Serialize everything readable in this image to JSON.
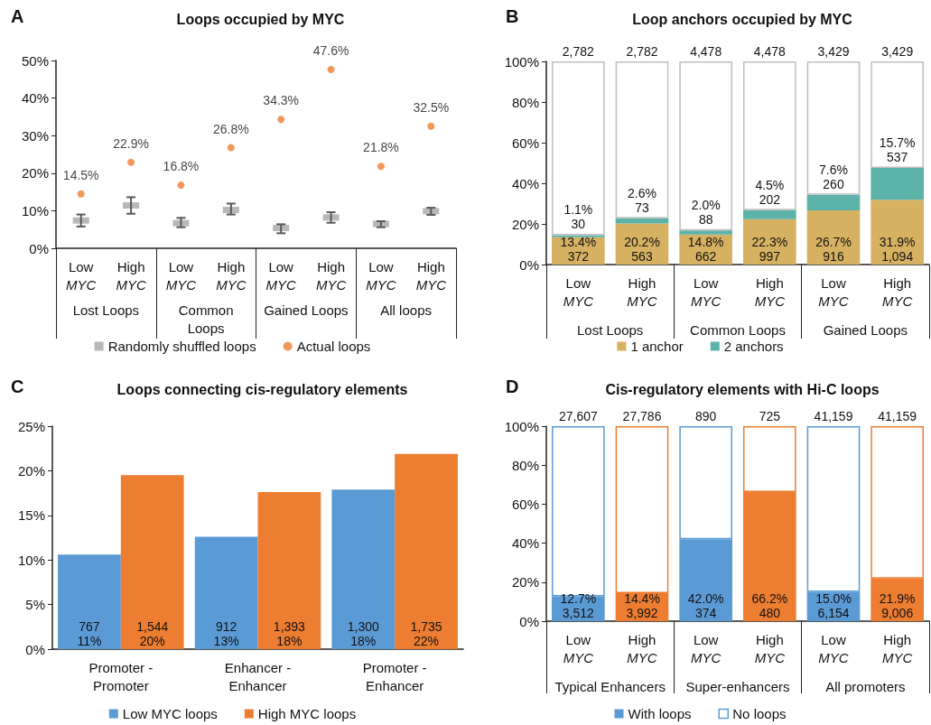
{
  "chart_data": [
    {
      "type": "scatter",
      "title": "Loops occupied by MYC",
      "categories": [
        "Low\nMYC",
        "High\nMYC",
        "Low\nMYC",
        "High\nMYC",
        "Low\nMYC",
        "High\nMYC",
        "Low\nMYC",
        "High\nMYC"
      ],
      "annotations": [
        "A",
        "Lost Loops",
        "Common\nLoops",
        "Gained Loops",
        "All loops"
      ],
      "series": [
        {
          "name": "Randomly shuffled loops",
          "color": "#a6a6a6",
          "marker": "square",
          "values": [
            7.4,
            11.4,
            6.7,
            10.2,
            5.4,
            8.2,
            6.5,
            9.9
          ],
          "errors": [
            [
              5.8,
              9.0
            ],
            [
              9.2,
              13.6
            ],
            [
              5.6,
              8.1
            ],
            [
              9.0,
              11.9
            ],
            [
              4.0,
              6.4
            ],
            [
              6.8,
              9.6
            ],
            [
              5.6,
              7.2
            ],
            [
              8.9,
              10.8
            ]
          ]
        },
        {
          "name": "Actual loops",
          "color": "#ed7d31",
          "marker": "circle",
          "values": [
            14.5,
            22.9,
            16.8,
            26.8,
            34.3,
            47.6,
            21.8,
            32.5
          ],
          "value_labels": [
            "14.5%",
            "22.9%",
            "16.8%",
            "26.8%",
            "34.3%",
            "47.6%",
            "21.8%",
            "32.5%"
          ]
        }
      ],
      "ylim": [
        0,
        50
      ],
      "yticks": [
        {
          "value": 0,
          "label": "0%"
        },
        {
          "value": 10,
          "label": "10%"
        },
        {
          "value": 20,
          "label": "20%"
        },
        {
          "value": 30,
          "label": "30%"
        },
        {
          "value": 40,
          "label": "40%"
        },
        {
          "value": 50,
          "label": "50%"
        }
      ],
      "legend": "bottom"
    },
    {
      "type": "bar",
      "stacked": true,
      "title": "Loop anchors occupied by MYC",
      "categories": [
        "Low\nMYC",
        "High\nMYC",
        "Low\nMYC",
        "High\nMYC",
        "Low\nMYC",
        "High\nMYC"
      ],
      "annotations": [
        "B",
        "Lost Loops",
        "Common Loops",
        "Gained Loops",
        {
          "text": "2,782",
          "y": 100
        },
        {
          "text": "2,782",
          "y": 100
        },
        {
          "text": "4,478",
          "y": 100
        },
        {
          "text": "4,478",
          "y": 100
        },
        {
          "text": "3,429",
          "y": 100
        },
        {
          "text": "3,429",
          "y": 100
        }
      ],
      "series": [
        {
          "name": "1 anchor",
          "color": "#d6b162",
          "values": [
            13.4,
            20.2,
            14.8,
            22.3,
            26.7,
            31.9
          ],
          "value_labels": [
            "13.4%\n372",
            "20.2%\n563",
            "14.8%\n662",
            "22.3%\n997",
            "26.7%\n916",
            "31.9%\n1,094"
          ]
        },
        {
          "name": "2 anchors",
          "color": "#5bb3a9",
          "values": [
            1.1,
            2.6,
            2.0,
            4.5,
            7.6,
            15.7
          ],
          "value_labels": [
            "1.1%\n30",
            "2.6%\n73",
            "2.0%\n88",
            "4.5%\n202",
            "7.6%\n260",
            "15.7%\n537"
          ]
        },
        {
          "color": "#ffffff",
          "values": [
            85.5,
            77.2,
            83.2,
            73.2,
            65.7,
            52.4
          ]
        }
      ],
      "ylim": [
        0,
        100
      ],
      "yticks": [
        {
          "value": 0,
          "label": "0%"
        },
        {
          "value": 20,
          "label": "20%"
        },
        {
          "value": 40,
          "label": "40%"
        },
        {
          "value": 60,
          "label": "60%"
        },
        {
          "value": 80,
          "label": "80%"
        },
        {
          "value": 100,
          "label": "100%"
        }
      ],
      "legend": "bottom"
    },
    {
      "type": "bar",
      "title": "Loops connecting cis-regulatory elements",
      "categories": [
        "Promoter -\nPromoter",
        "Enhancer -\nEnhancer",
        "Promoter -\nEnhancer"
      ],
      "annotations": [
        "C"
      ],
      "series": [
        {
          "name": "Low MYC loops",
          "color": "#5b9bd5",
          "values": [
            10.6,
            12.6,
            17.9
          ],
          "value_labels": [
            "767\n11%",
            "912\n13%",
            "1,300\n18%"
          ]
        },
        {
          "name": "High MYC loops",
          "color": "#ed7d31",
          "values": [
            19.5,
            17.6,
            21.9
          ],
          "value_labels": [
            "1,544\n20%",
            "1,393\n18%",
            "1,735\n22%"
          ]
        }
      ],
      "ylim": [
        0,
        25
      ],
      "yticks": [
        {
          "value": 0,
          "label": "0%"
        },
        {
          "value": 5,
          "label": "5%"
        },
        {
          "value": 10,
          "label": "10%"
        },
        {
          "value": 15,
          "label": "15%"
        },
        {
          "value": 20,
          "label": "20%"
        },
        {
          "value": 25,
          "label": "25%"
        }
      ],
      "legend": "bottom"
    },
    {
      "type": "bar",
      "stacked": true,
      "title": "Cis-regulatory elements with Hi-C loops",
      "categories": [
        "Low\nMYC",
        "High\nMYC",
        "Low\nMYC",
        "High\nMYC",
        "Low\nMYC",
        "High\nMYC"
      ],
      "annotations": [
        "D",
        "Typical Enhancers",
        "Super-enhancers",
        "All promoters",
        {
          "text": "27,607",
          "y": 100
        },
        {
          "text": "27,786",
          "y": 100
        },
        {
          "text": "890",
          "y": 100
        },
        {
          "text": "725",
          "y": 100
        },
        {
          "text": "41,159",
          "y": 100
        },
        {
          "text": "41,159",
          "y": 100
        }
      ],
      "series": [
        {
          "name": "With loops",
          "colors": [
            "#5b9bd5",
            "#ed7d31",
            "#5b9bd5",
            "#ed7d31",
            "#5b9bd5",
            "#ed7d31"
          ],
          "values": [
            12.7,
            14.4,
            42.0,
            66.2,
            15.0,
            21.9
          ],
          "value_labels": [
            "12.7%\n3,512",
            "14.4%\n3,992",
            "42.0%\n374",
            "66.2%\n480",
            "15.0%\n6,154",
            "21.9%\n9,006"
          ]
        },
        {
          "name": "No loops",
          "color": "#ffffff",
          "values": [
            87.3,
            85.6,
            58.0,
            33.8,
            85.0,
            78.1
          ]
        }
      ],
      "ylim": [
        0,
        100
      ],
      "yticks": [
        {
          "value": 0,
          "label": "0%"
        },
        {
          "value": 20,
          "label": "20%"
        },
        {
          "value": 40,
          "label": "40%"
        },
        {
          "value": 60,
          "label": "60%"
        },
        {
          "value": 80,
          "label": "80%"
        },
        {
          "value": 100,
          "label": "100%"
        }
      ],
      "legend": "bottom"
    }
  ]
}
